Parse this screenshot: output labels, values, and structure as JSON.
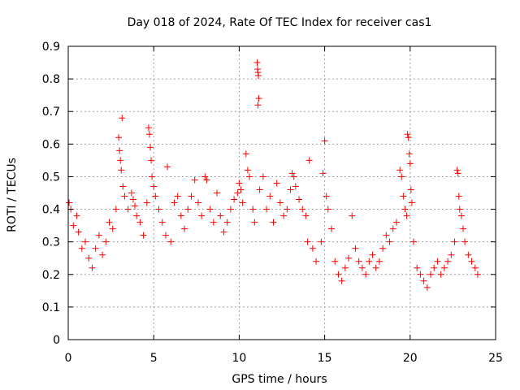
{
  "chart_data": {
    "type": "scatter",
    "title": "Day 018 of 2024, Rate Of TEC Index for receiver cas1",
    "xlabel": "GPS time / hours",
    "ylabel": "ROTI / TECUs",
    "xlim": [
      0,
      25
    ],
    "ylim": [
      0,
      0.9
    ],
    "xticks": [
      0,
      5,
      10,
      15,
      20,
      25
    ],
    "xtick_labels": [
      "0",
      "5",
      "10",
      "15",
      "20",
      "25"
    ],
    "yticks": [
      0,
      0.1,
      0.2,
      0.3,
      0.4,
      0.5,
      0.6,
      0.7,
      0.8,
      0.9
    ],
    "ytick_labels": [
      "0",
      "0.1",
      "0.2",
      "0.3",
      "0.4",
      "0.5",
      "0.6",
      "0.7",
      "0.8",
      "0.9"
    ],
    "grid": true,
    "marker": "+",
    "marker_color": "#ff0000",
    "series": [
      {
        "name": "cas1",
        "points": [
          [
            0.05,
            0.42
          ],
          [
            0.15,
            0.4
          ],
          [
            0.3,
            0.35
          ],
          [
            0.5,
            0.38
          ],
          [
            0.6,
            0.33
          ],
          [
            0.8,
            0.28
          ],
          [
            1.0,
            0.3
          ],
          [
            1.2,
            0.25
          ],
          [
            1.4,
            0.22
          ],
          [
            1.6,
            0.28
          ],
          [
            1.8,
            0.32
          ],
          [
            2.0,
            0.26
          ],
          [
            2.2,
            0.3
          ],
          [
            2.4,
            0.36
          ],
          [
            2.6,
            0.34
          ],
          [
            2.8,
            0.4
          ],
          [
            2.95,
            0.62
          ],
          [
            3.0,
            0.58
          ],
          [
            3.05,
            0.55
          ],
          [
            3.1,
            0.52
          ],
          [
            3.15,
            0.68
          ],
          [
            3.2,
            0.47
          ],
          [
            3.3,
            0.44
          ],
          [
            3.5,
            0.4
          ],
          [
            3.7,
            0.45
          ],
          [
            3.8,
            0.43
          ],
          [
            3.9,
            0.41
          ],
          [
            4.0,
            0.38
          ],
          [
            4.2,
            0.36
          ],
          [
            4.4,
            0.32
          ],
          [
            4.6,
            0.42
          ],
          [
            4.7,
            0.65
          ],
          [
            4.75,
            0.63
          ],
          [
            4.8,
            0.59
          ],
          [
            4.85,
            0.55
          ],
          [
            4.9,
            0.5
          ],
          [
            5.0,
            0.47
          ],
          [
            5.1,
            0.44
          ],
          [
            5.3,
            0.4
          ],
          [
            5.5,
            0.36
          ],
          [
            5.7,
            0.32
          ],
          [
            5.8,
            0.53
          ],
          [
            6.0,
            0.3
          ],
          [
            6.2,
            0.42
          ],
          [
            6.4,
            0.44
          ],
          [
            6.6,
            0.38
          ],
          [
            6.8,
            0.34
          ],
          [
            7.0,
            0.4
          ],
          [
            7.2,
            0.44
          ],
          [
            7.4,
            0.49
          ],
          [
            7.6,
            0.42
          ],
          [
            7.8,
            0.38
          ],
          [
            8.0,
            0.5
          ],
          [
            8.1,
            0.49
          ],
          [
            8.3,
            0.4
          ],
          [
            8.5,
            0.36
          ],
          [
            8.7,
            0.45
          ],
          [
            8.9,
            0.38
          ],
          [
            9.1,
            0.33
          ],
          [
            9.3,
            0.36
          ],
          [
            9.5,
            0.4
          ],
          [
            9.7,
            0.43
          ],
          [
            9.9,
            0.45
          ],
          [
            10.0,
            0.48
          ],
          [
            10.1,
            0.46
          ],
          [
            10.2,
            0.42
          ],
          [
            10.4,
            0.57
          ],
          [
            10.5,
            0.52
          ],
          [
            10.6,
            0.5
          ],
          [
            10.8,
            0.4
          ],
          [
            10.9,
            0.36
          ],
          [
            11.05,
            0.85
          ],
          [
            11.08,
            0.83
          ],
          [
            11.1,
            0.82
          ],
          [
            11.12,
            0.81
          ],
          [
            11.15,
            0.74
          ],
          [
            11.1,
            0.72
          ],
          [
            11.2,
            0.46
          ],
          [
            11.4,
            0.5
          ],
          [
            11.6,
            0.4
          ],
          [
            11.8,
            0.44
          ],
          [
            12.0,
            0.36
          ],
          [
            12.2,
            0.48
          ],
          [
            12.4,
            0.42
          ],
          [
            12.6,
            0.38
          ],
          [
            12.8,
            0.4
          ],
          [
            13.0,
            0.46
          ],
          [
            13.1,
            0.51
          ],
          [
            13.2,
            0.5
          ],
          [
            13.3,
            0.47
          ],
          [
            13.5,
            0.43
          ],
          [
            13.7,
            0.4
          ],
          [
            13.9,
            0.38
          ],
          [
            14.0,
            0.3
          ],
          [
            14.1,
            0.55
          ],
          [
            14.3,
            0.28
          ],
          [
            14.5,
            0.24
          ],
          [
            14.8,
            0.3
          ],
          [
            14.9,
            0.51
          ],
          [
            15.0,
            0.61
          ],
          [
            15.1,
            0.44
          ],
          [
            15.2,
            0.4
          ],
          [
            15.4,
            0.34
          ],
          [
            15.6,
            0.24
          ],
          [
            15.8,
            0.2
          ],
          [
            16.0,
            0.18
          ],
          [
            16.2,
            0.22
          ],
          [
            16.4,
            0.25
          ],
          [
            16.6,
            0.38
          ],
          [
            16.8,
            0.28
          ],
          [
            17.0,
            0.24
          ],
          [
            17.2,
            0.22
          ],
          [
            17.4,
            0.2
          ],
          [
            17.6,
            0.24
          ],
          [
            17.8,
            0.26
          ],
          [
            18.0,
            0.22
          ],
          [
            18.2,
            0.24
          ],
          [
            18.4,
            0.28
          ],
          [
            18.6,
            0.32
          ],
          [
            18.8,
            0.3
          ],
          [
            19.0,
            0.34
          ],
          [
            19.2,
            0.36
          ],
          [
            19.4,
            0.52
          ],
          [
            19.5,
            0.5
          ],
          [
            19.6,
            0.44
          ],
          [
            19.7,
            0.4
          ],
          [
            19.8,
            0.38
          ],
          [
            19.85,
            0.63
          ],
          [
            19.9,
            0.62
          ],
          [
            19.95,
            0.57
          ],
          [
            20.0,
            0.54
          ],
          [
            20.05,
            0.46
          ],
          [
            20.1,
            0.42
          ],
          [
            20.2,
            0.3
          ],
          [
            20.4,
            0.22
          ],
          [
            20.6,
            0.2
          ],
          [
            20.8,
            0.18
          ],
          [
            21.0,
            0.16
          ],
          [
            21.2,
            0.2
          ],
          [
            21.4,
            0.22
          ],
          [
            21.6,
            0.24
          ],
          [
            21.8,
            0.2
          ],
          [
            22.0,
            0.22
          ],
          [
            22.2,
            0.24
          ],
          [
            22.4,
            0.26
          ],
          [
            22.6,
            0.3
          ],
          [
            22.75,
            0.52
          ],
          [
            22.8,
            0.51
          ],
          [
            22.85,
            0.44
          ],
          [
            22.9,
            0.4
          ],
          [
            23.0,
            0.38
          ],
          [
            23.1,
            0.34
          ],
          [
            23.2,
            0.3
          ],
          [
            23.4,
            0.26
          ],
          [
            23.6,
            0.24
          ],
          [
            23.8,
            0.22
          ],
          [
            23.95,
            0.2
          ]
        ]
      }
    ]
  }
}
